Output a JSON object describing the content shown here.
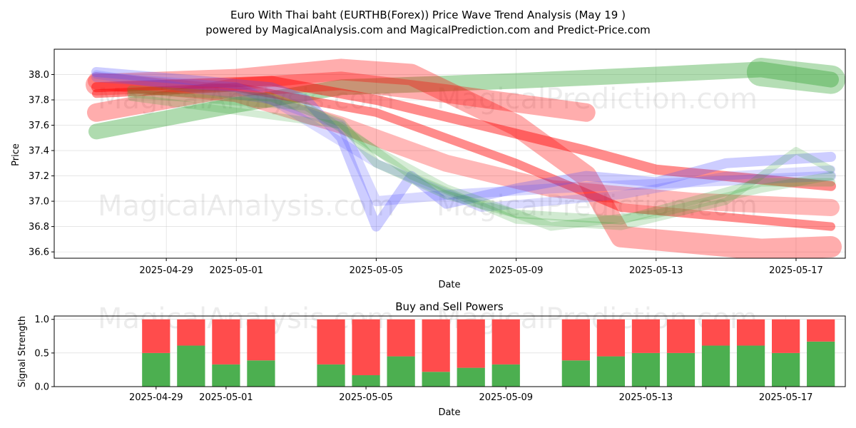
{
  "title_line1": "Euro With Thai baht (EURTHB(Forex)) Price Wave Trend Analysis (May 19 )",
  "title_line2": "powered by MagicalAnalysis.com and MagicalPrediction.com and Predict-Price.com",
  "watermark": [
    "MagicalAnalysis.com",
    "MagicalPrediction.com"
  ],
  "colors": {
    "green": "#2ca02c",
    "red": "#ff0000",
    "blue": "#4d4dff",
    "buy": "#4caf50",
    "sell": "#ff4c4c"
  },
  "chart_data": [
    {
      "type": "line",
      "xlabel": "Date",
      "ylabel": "Price",
      "x_range": [
        "2025-04-26",
        "2025-05-18"
      ],
      "ylim": [
        36.55,
        38.2
      ],
      "y_ticks": [
        36.6,
        36.8,
        37.0,
        37.2,
        37.4,
        37.6,
        37.8,
        38.0
      ],
      "x_ticks": [
        "2025-04-29",
        "2025-05-01",
        "2025-05-05",
        "2025-05-09",
        "2025-05-13",
        "2025-05-17"
      ],
      "grid": true,
      "series": [
        {
          "color": "green",
          "width": 22,
          "opacity": 0.38,
          "points": [
            [
              "2025-04-27",
              37.55
            ],
            [
              "2025-05-01",
              37.76
            ],
            [
              "2025-05-04",
              37.9
            ],
            [
              "2025-05-09",
              37.95
            ],
            [
              "2025-05-13",
              38.0
            ],
            [
              "2025-05-16",
              38.04
            ],
            [
              "2025-05-18",
              37.96
            ]
          ]
        },
        {
          "color": "green",
          "width": 40,
          "opacity": 0.35,
          "points": [
            [
              "2025-05-16",
              38.02
            ],
            [
              "2025-05-18",
              37.96
            ]
          ]
        },
        {
          "color": "red",
          "width": 30,
          "opacity": 0.32,
          "points": [
            [
              "2025-04-27",
              37.92
            ],
            [
              "2025-05-01",
              37.96
            ],
            [
              "2025-05-04",
              38.04
            ],
            [
              "2025-05-06",
              38.0
            ],
            [
              "2025-05-09",
              37.6
            ],
            [
              "2025-05-11",
              37.2
            ],
            [
              "2025-05-12",
              36.72
            ],
            [
              "2025-05-16",
              36.62
            ],
            [
              "2025-05-18",
              36.64
            ]
          ]
        },
        {
          "color": "red",
          "width": 26,
          "opacity": 0.32,
          "points": [
            [
              "2025-04-27",
              37.7
            ],
            [
              "2025-05-01",
              37.9
            ],
            [
              "2025-05-04",
              37.95
            ],
            [
              "2025-05-07",
              37.85
            ],
            [
              "2025-05-11",
              37.7
            ]
          ]
        },
        {
          "color": "red",
          "width": 24,
          "opacity": 0.28,
          "points": [
            [
              "2025-04-27",
              37.95
            ],
            [
              "2025-05-01",
              37.85
            ],
            [
              "2025-05-04",
              37.6
            ],
            [
              "2025-05-07",
              37.3
            ],
            [
              "2025-05-10",
              37.1
            ],
            [
              "2025-05-14",
              37.0
            ],
            [
              "2025-05-18",
              36.95
            ]
          ]
        },
        {
          "color": "red",
          "width": 14,
          "opacity": 0.45,
          "points": [
            [
              "2025-04-27",
              37.9
            ],
            [
              "2025-05-02",
              37.95
            ],
            [
              "2025-05-05",
              37.8
            ],
            [
              "2025-05-08",
              37.6
            ],
            [
              "2025-05-11",
              37.4
            ],
            [
              "2025-05-13",
              37.25
            ],
            [
              "2025-05-18",
              37.12
            ]
          ]
        },
        {
          "color": "red",
          "width": 12,
          "opacity": 0.45,
          "points": [
            [
              "2025-04-27",
              37.85
            ],
            [
              "2025-05-01",
              37.9
            ],
            [
              "2025-05-05",
              37.7
            ],
            [
              "2025-05-09",
              37.3
            ],
            [
              "2025-05-12",
              36.95
            ],
            [
              "2025-05-16",
              36.85
            ],
            [
              "2025-05-18",
              36.8
            ]
          ]
        },
        {
          "color": "blue",
          "width": 14,
          "opacity": 0.28,
          "points": [
            [
              "2025-04-27",
              38.02
            ],
            [
              "2025-04-30",
              37.95
            ],
            [
              "2025-05-02",
              37.9
            ],
            [
              "2025-05-03",
              37.8
            ],
            [
              "2025-05-04",
              37.5
            ],
            [
              "2025-05-05",
              36.8
            ],
            [
              "2025-05-06",
              37.2
            ],
            [
              "2025-05-07",
              36.98
            ],
            [
              "2025-05-09",
              37.1
            ],
            [
              "2025-05-11",
              37.2
            ],
            [
              "2025-05-13",
              37.15
            ],
            [
              "2025-05-15",
              37.3
            ],
            [
              "2025-05-18",
              37.35
            ]
          ]
        },
        {
          "color": "blue",
          "width": 14,
          "opacity": 0.22,
          "points": [
            [
              "2025-04-27",
              37.98
            ],
            [
              "2025-05-01",
              37.9
            ],
            [
              "2025-05-04",
              37.6
            ],
            [
              "2025-05-05",
              37.0
            ],
            [
              "2025-05-07",
              37.05
            ],
            [
              "2025-05-10",
              37.1
            ],
            [
              "2025-05-14",
              37.15
            ],
            [
              "2025-05-18",
              37.2
            ]
          ]
        },
        {
          "color": "blue",
          "width": 12,
          "opacity": 0.2,
          "points": [
            [
              "2025-04-27",
              38.0
            ],
            [
              "2025-05-02",
              37.8
            ],
            [
              "2025-05-05",
              37.3
            ],
            [
              "2025-05-08",
              36.95
            ],
            [
              "2025-05-12",
              37.05
            ],
            [
              "2025-05-15",
              37.2
            ],
            [
              "2025-05-18",
              37.25
            ]
          ]
        },
        {
          "color": "green",
          "width": 12,
          "opacity": 0.22,
          "points": [
            [
              "2025-04-28",
              37.88
            ],
            [
              "2025-05-02",
              37.82
            ],
            [
              "2025-05-04",
              37.62
            ],
            [
              "2025-05-05",
              37.3
            ],
            [
              "2025-05-07",
              37.05
            ],
            [
              "2025-05-09",
              36.9
            ],
            [
              "2025-05-12",
              36.85
            ],
            [
              "2025-05-14",
              37.0
            ],
            [
              "2025-05-16",
              37.15
            ],
            [
              "2025-05-18",
              37.15
            ]
          ]
        },
        {
          "color": "green",
          "width": 12,
          "opacity": 0.2,
          "points": [
            [
              "2025-04-28",
              37.85
            ],
            [
              "2025-05-03",
              37.75
            ],
            [
              "2025-05-05",
              37.4
            ],
            [
              "2025-05-07",
              37.1
            ],
            [
              "2025-05-10",
              36.8
            ],
            [
              "2025-05-13",
              36.9
            ],
            [
              "2025-05-16",
              37.1
            ],
            [
              "2025-05-18",
              37.2
            ]
          ]
        },
        {
          "color": "green",
          "width": 10,
          "opacity": 0.2,
          "points": [
            [
              "2025-04-28",
              37.82
            ],
            [
              "2025-05-04",
              37.6
            ],
            [
              "2025-05-06",
              37.2
            ],
            [
              "2025-05-09",
              36.85
            ],
            [
              "2025-05-12",
              36.8
            ],
            [
              "2025-05-15",
              37.0
            ],
            [
              "2025-05-17",
              37.4
            ],
            [
              "2025-05-18",
              37.25
            ]
          ]
        }
      ]
    },
    {
      "type": "bar",
      "title": "Buy and Sell Powers",
      "xlabel": "Date",
      "ylabel": "Signal Strength",
      "ylim": [
        0,
        1.05
      ],
      "y_ticks": [
        0.0,
        0.5,
        1.0
      ],
      "x_ticks": [
        "2025-04-29",
        "2025-05-01",
        "2025-05-05",
        "2025-05-09",
        "2025-05-13",
        "2025-05-17"
      ],
      "categories": [
        "2025-04-29",
        "2025-04-30",
        "2025-05-01",
        "2025-05-02",
        "2025-05-04",
        "2025-05-05",
        "2025-05-06",
        "2025-05-07",
        "2025-05-08",
        "2025-05-09",
        "2025-05-11",
        "2025-05-12",
        "2025-05-13",
        "2025-05-14",
        "2025-05-15",
        "2025-05-16",
        "2025-05-17",
        "2025-05-18"
      ],
      "series": [
        {
          "color": "buy",
          "values": [
            0.5,
            0.61,
            0.33,
            0.39,
            0.33,
            0.17,
            0.45,
            0.22,
            0.28,
            0.33,
            0.39,
            0.45,
            0.5,
            0.5,
            0.61,
            0.61,
            0.5,
            0.67
          ]
        },
        {
          "color": "sell",
          "values": [
            0.5,
            0.39,
            0.67,
            0.61,
            0.67,
            0.83,
            0.55,
            0.78,
            0.72,
            0.67,
            0.61,
            0.55,
            0.5,
            0.5,
            0.39,
            0.39,
            0.5,
            0.33
          ]
        }
      ]
    }
  ]
}
